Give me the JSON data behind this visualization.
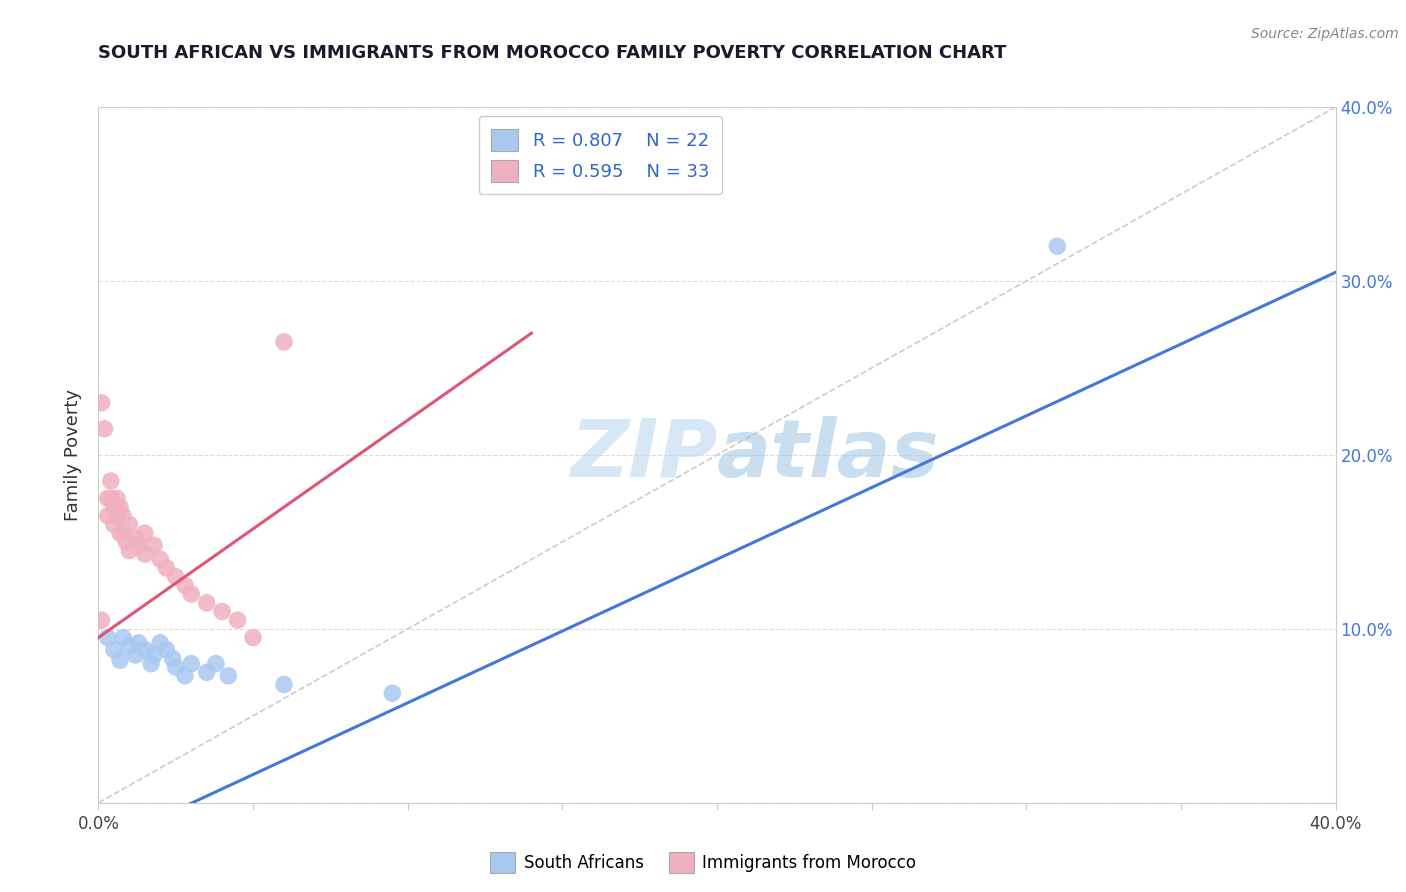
{
  "title": "SOUTH AFRICAN VS IMMIGRANTS FROM MOROCCO FAMILY POVERTY CORRELATION CHART",
  "source": "Source: ZipAtlas.com",
  "ylabel": "Family Poverty",
  "xlim": [
    0.0,
    0.4
  ],
  "ylim": [
    0.0,
    0.4
  ],
  "xticks": [
    0.0,
    0.05,
    0.1,
    0.15,
    0.2,
    0.25,
    0.3,
    0.35,
    0.4
  ],
  "yticks": [
    0.0,
    0.1,
    0.2,
    0.3,
    0.4
  ],
  "legend_r1": "R = 0.807",
  "legend_n1": "N = 22",
  "legend_r2": "R = 0.595",
  "legend_n2": "N = 33",
  "legend_label1": "South Africans",
  "legend_label2": "Immigrants from Morocco",
  "watermark_zip": "ZIP",
  "watermark_atlas": "atlas",
  "blue_color": "#A8C8F0",
  "pink_color": "#F0B0C0",
  "blue_line_color": "#4477DD",
  "pink_line_color": "#DD5577",
  "ref_line_color": "#CCCCCC",
  "blue_scatter": [
    [
      0.003,
      0.095
    ],
    [
      0.005,
      0.088
    ],
    [
      0.007,
      0.082
    ],
    [
      0.008,
      0.095
    ],
    [
      0.01,
      0.09
    ],
    [
      0.012,
      0.085
    ],
    [
      0.013,
      0.092
    ],
    [
      0.015,
      0.088
    ],
    [
      0.017,
      0.08
    ],
    [
      0.018,
      0.085
    ],
    [
      0.02,
      0.092
    ],
    [
      0.022,
      0.088
    ],
    [
      0.024,
      0.083
    ],
    [
      0.025,
      0.078
    ],
    [
      0.028,
      0.073
    ],
    [
      0.03,
      0.08
    ],
    [
      0.035,
      0.075
    ],
    [
      0.038,
      0.08
    ],
    [
      0.042,
      0.073
    ],
    [
      0.06,
      0.068
    ],
    [
      0.095,
      0.063
    ],
    [
      0.31,
      0.32
    ]
  ],
  "pink_scatter": [
    [
      0.001,
      0.105
    ],
    [
      0.002,
      0.215
    ],
    [
      0.003,
      0.175
    ],
    [
      0.003,
      0.165
    ],
    [
      0.004,
      0.185
    ],
    [
      0.004,
      0.175
    ],
    [
      0.005,
      0.17
    ],
    [
      0.005,
      0.16
    ],
    [
      0.006,
      0.175
    ],
    [
      0.006,
      0.165
    ],
    [
      0.007,
      0.17
    ],
    [
      0.007,
      0.155
    ],
    [
      0.008,
      0.165
    ],
    [
      0.008,
      0.155
    ],
    [
      0.009,
      0.15
    ],
    [
      0.01,
      0.16
    ],
    [
      0.01,
      0.145
    ],
    [
      0.012,
      0.152
    ],
    [
      0.013,
      0.148
    ],
    [
      0.015,
      0.155
    ],
    [
      0.015,
      0.143
    ],
    [
      0.018,
      0.148
    ],
    [
      0.02,
      0.14
    ],
    [
      0.022,
      0.135
    ],
    [
      0.025,
      0.13
    ],
    [
      0.028,
      0.125
    ],
    [
      0.03,
      0.12
    ],
    [
      0.035,
      0.115
    ],
    [
      0.04,
      0.11
    ],
    [
      0.045,
      0.105
    ],
    [
      0.05,
      0.095
    ],
    [
      0.06,
      0.265
    ],
    [
      0.001,
      0.23
    ]
  ],
  "blue_line_x": [
    0.0,
    0.4
  ],
  "blue_line_y": [
    -0.025,
    0.305
  ],
  "pink_line_x": [
    0.0,
    0.14
  ],
  "pink_line_y": [
    0.095,
    0.27
  ]
}
